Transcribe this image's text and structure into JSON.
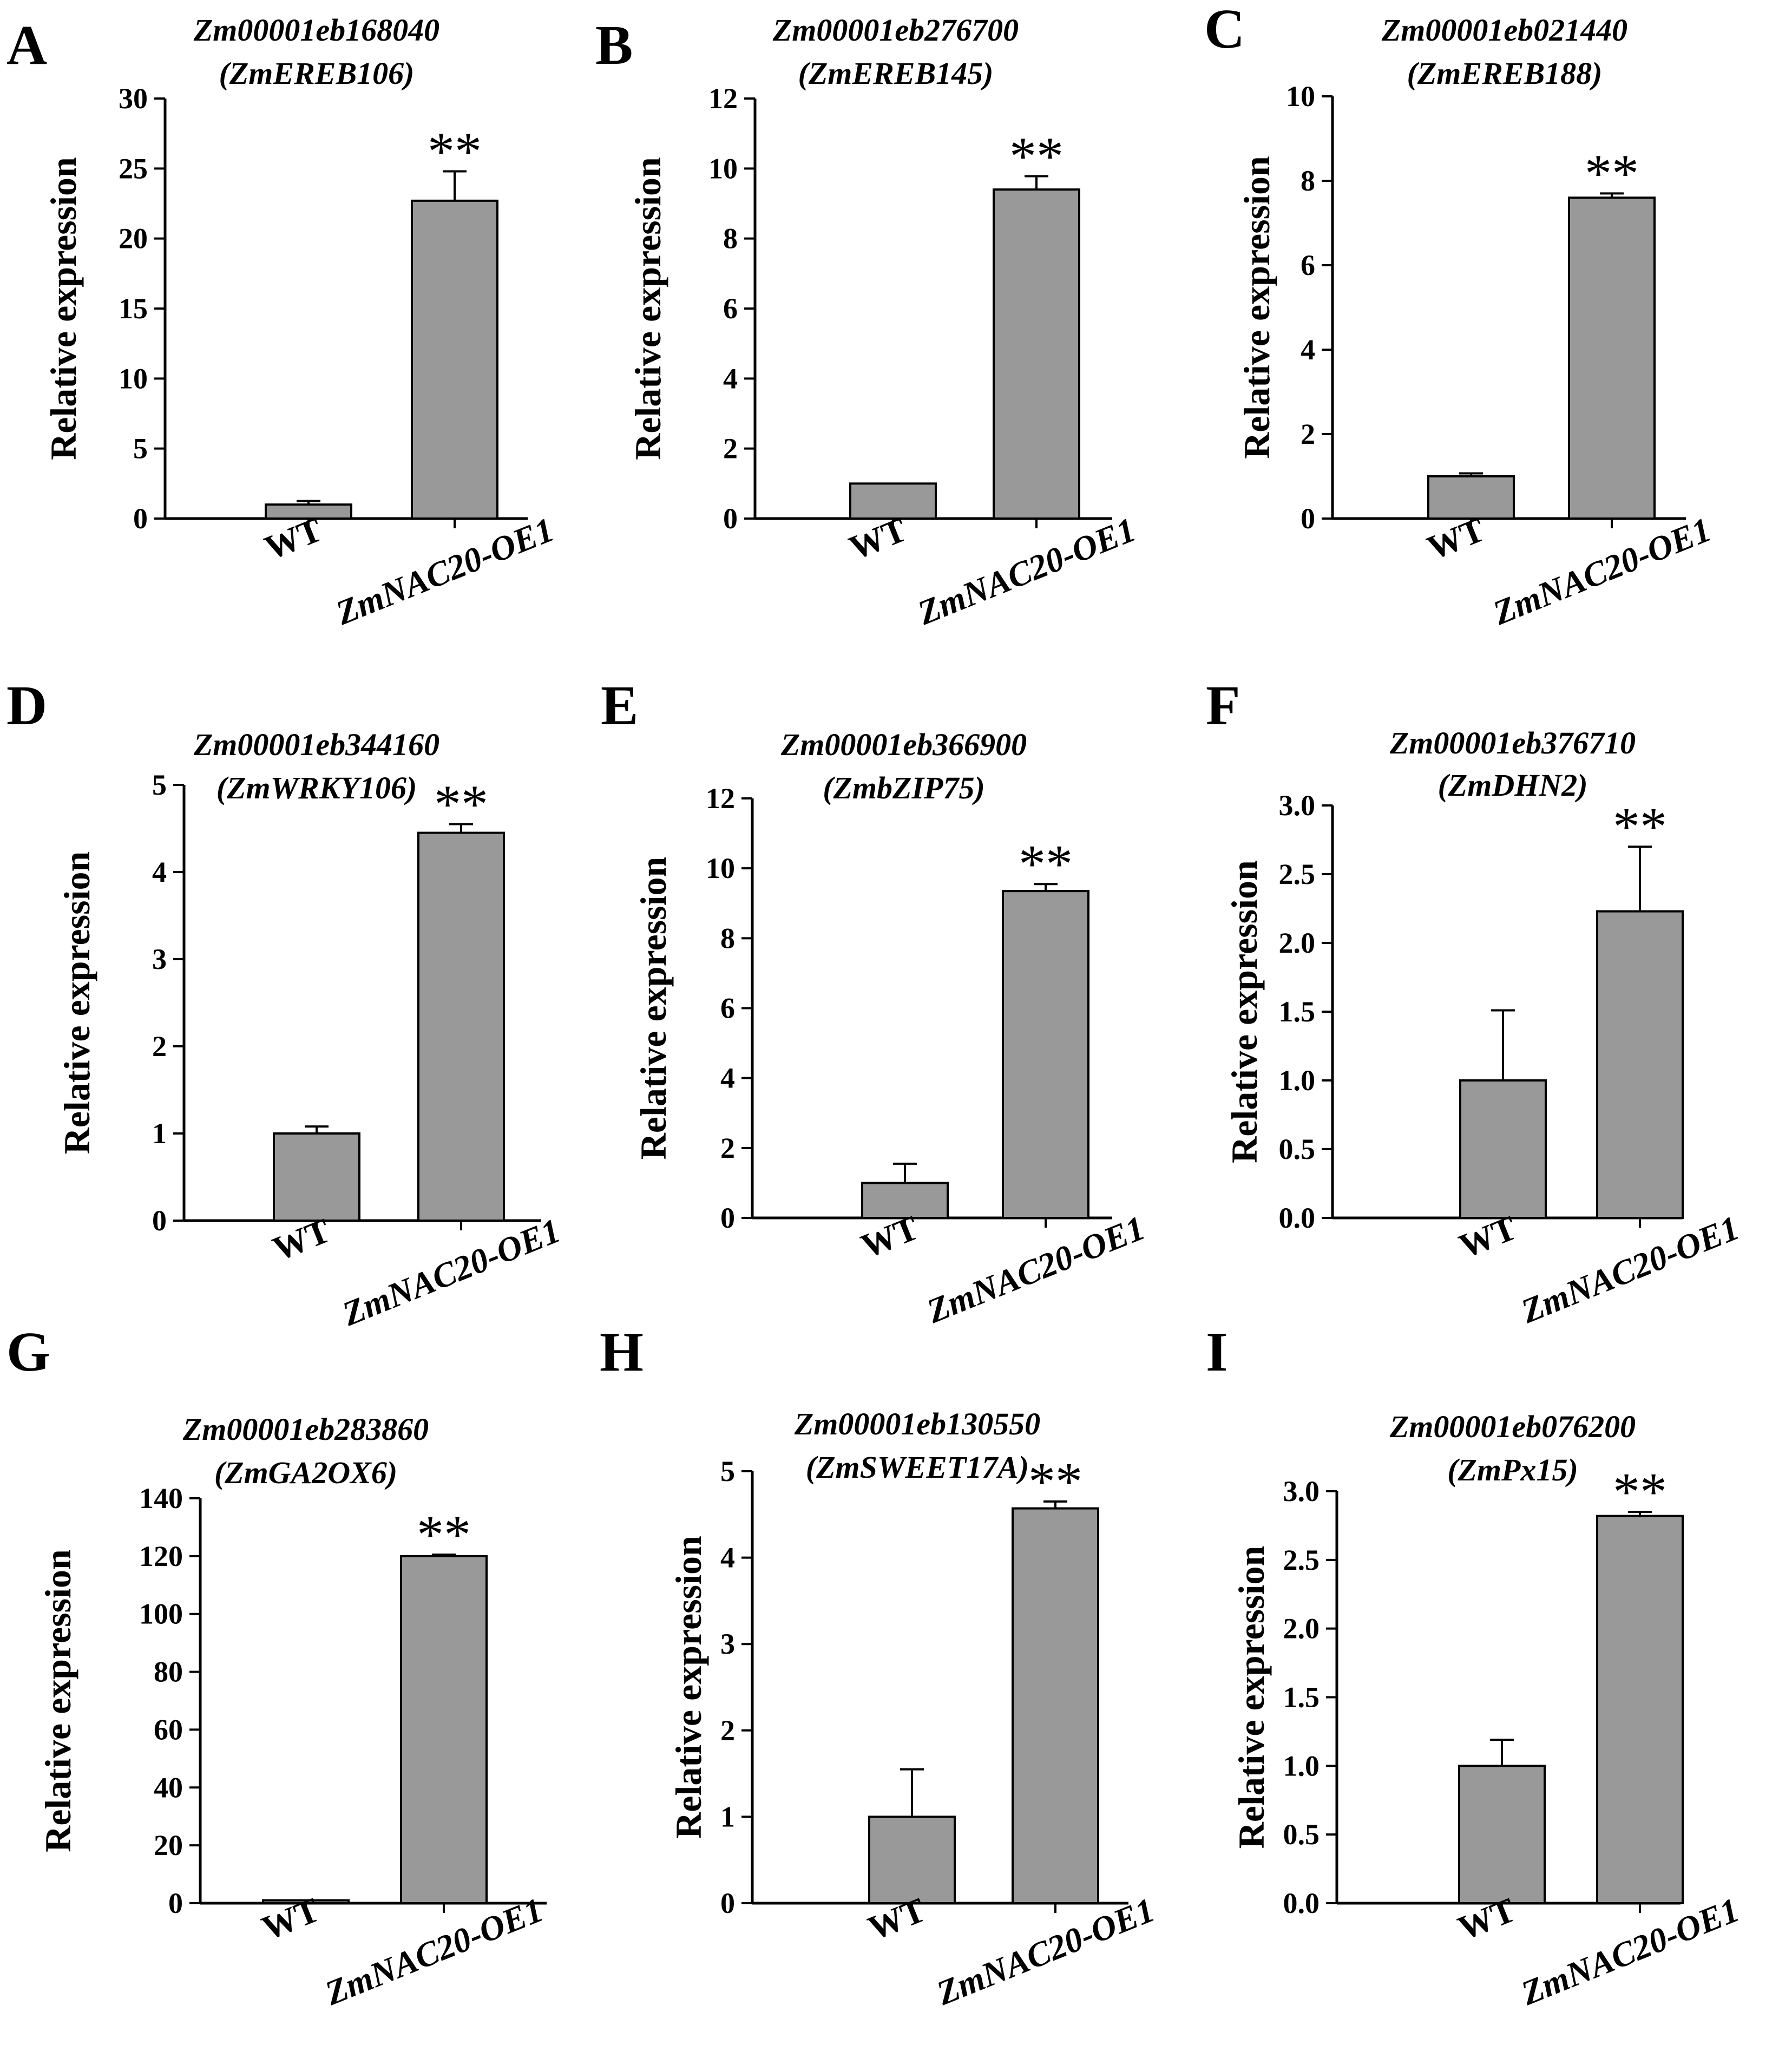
{
  "figure": {
    "colors": {
      "bar": "#999999",
      "bar_stroke": "#000000",
      "axis": "#000000"
    },
    "categories": [
      "WT",
      "ZmNAC20-OE1"
    ],
    "y_axis_label": "Relative expression"
  },
  "chart_data": [
    {
      "panel": "A",
      "type": "bar",
      "title": "Zm00001eb168040",
      "subtitle": "(ZmEREB106)",
      "categories": [
        "WT",
        "ZmNAC20-OE1"
      ],
      "values": [
        1.0,
        22.7
      ],
      "errors": [
        0.25,
        2.1
      ],
      "significance": [
        "",
        "**"
      ],
      "ylabel": "Relative expression",
      "ylim": [
        0,
        30
      ],
      "yticks": [
        0,
        5,
        10,
        15,
        20,
        25,
        30
      ],
      "ytick_labels": [
        "0",
        "5",
        "10",
        "15",
        "20",
        "25",
        "30"
      ]
    },
    {
      "panel": "B",
      "type": "bar",
      "title": "Zm00001eb276700",
      "subtitle": "(ZmEREB145)",
      "categories": [
        "WT",
        "ZmNAC20-OE1"
      ],
      "values": [
        1.0,
        9.4
      ],
      "errors": [
        0.0,
        0.38
      ],
      "significance": [
        "",
        "**"
      ],
      "ylabel": "Relative expression",
      "ylim": [
        0,
        12
      ],
      "yticks": [
        0,
        2,
        4,
        6,
        8,
        10,
        12
      ],
      "ytick_labels": [
        "0",
        "2",
        "4",
        "6",
        "8",
        "10",
        "12"
      ]
    },
    {
      "panel": "C",
      "type": "bar",
      "title": "Zm00001eb021440",
      "subtitle": "(ZmEREB188)",
      "categories": [
        "WT",
        "ZmNAC20-OE1"
      ],
      "values": [
        1.0,
        7.6
      ],
      "errors": [
        0.07,
        0.1
      ],
      "significance": [
        "",
        "**"
      ],
      "ylabel": "Relative expression",
      "ylim": [
        0,
        10
      ],
      "yticks": [
        0,
        2,
        4,
        6,
        8,
        10
      ],
      "ytick_labels": [
        "0",
        "2",
        "4",
        "6",
        "8",
        "10"
      ]
    },
    {
      "panel": "D",
      "type": "bar",
      "title": "Zm00001eb344160",
      "subtitle": "(ZmWRKY106)",
      "categories": [
        "WT",
        "ZmNAC20-OE1"
      ],
      "values": [
        1.0,
        4.45
      ],
      "errors": [
        0.08,
        0.1
      ],
      "significance": [
        "",
        "**"
      ],
      "ylabel": "Relative expression",
      "ylim": [
        0,
        5
      ],
      "yticks": [
        0,
        1,
        2,
        3,
        4,
        5
      ],
      "ytick_labels": [
        "0",
        "1",
        "2",
        "3",
        "4",
        "5"
      ]
    },
    {
      "panel": "E",
      "type": "bar",
      "title": "Zm00001eb366900",
      "subtitle": "(ZmbZIP75)",
      "categories": [
        "WT",
        "ZmNAC20-OE1"
      ],
      "values": [
        1.0,
        9.35
      ],
      "errors": [
        0.55,
        0.2
      ],
      "significance": [
        "",
        "**"
      ],
      "ylabel": "Relative expression",
      "ylim": [
        0,
        12
      ],
      "yticks": [
        0,
        2,
        4,
        6,
        8,
        10,
        12
      ],
      "ytick_labels": [
        "0",
        "2",
        "4",
        "6",
        "8",
        "10",
        "12"
      ]
    },
    {
      "panel": "F",
      "type": "bar",
      "title": "Zm00001eb376710",
      "subtitle": "(ZmDHN2)",
      "categories": [
        "WT",
        "ZmNAC20-OE1"
      ],
      "values": [
        1.0,
        2.23
      ],
      "errors": [
        0.51,
        0.47
      ],
      "significance": [
        "",
        "**"
      ],
      "ylabel": "Relative expression",
      "ylim": [
        0,
        3
      ],
      "yticks": [
        0,
        0.5,
        1,
        1.5,
        2,
        2.5,
        3
      ],
      "ytick_labels": [
        "0.0",
        "0.5",
        "1.0",
        "1.5",
        "2.0",
        "2.5",
        "3.0"
      ]
    },
    {
      "panel": "G",
      "type": "bar",
      "title": "Zm00001eb283860",
      "subtitle": "(ZmGA2OX6)",
      "categories": [
        "WT",
        "ZmNAC20-OE1"
      ],
      "values": [
        1.0,
        120
      ],
      "errors": [
        0.0,
        0.5
      ],
      "significance": [
        "",
        "**"
      ],
      "ylabel": "Relative expression",
      "ylim": [
        0,
        140
      ],
      "yticks": [
        0,
        20,
        40,
        60,
        80,
        100,
        120,
        140
      ],
      "ytick_labels": [
        "0",
        "20",
        "40",
        "60",
        "80",
        "100",
        "120",
        "140"
      ]
    },
    {
      "panel": "H",
      "type": "bar",
      "title": "Zm00001eb130550",
      "subtitle": "(ZmSWEET17A)",
      "categories": [
        "WT",
        "ZmNAC20-OE1"
      ],
      "values": [
        1.0,
        4.57
      ],
      "errors": [
        0.55,
        0.08
      ],
      "significance": [
        "",
        "**"
      ],
      "ylabel": "Relative expression",
      "ylim": [
        0,
        5
      ],
      "yticks": [
        0,
        1,
        2,
        3,
        4,
        5
      ],
      "ytick_labels": [
        "0",
        "1",
        "2",
        "3",
        "4",
        "5"
      ]
    },
    {
      "panel": "I",
      "type": "bar",
      "title": "Zm00001eb076200",
      "subtitle": "(ZmPx15)",
      "categories": [
        "WT",
        "ZmNAC20-OE1"
      ],
      "values": [
        1.0,
        2.82
      ],
      "errors": [
        0.19,
        0.03
      ],
      "significance": [
        "",
        "**"
      ],
      "ylabel": "Relative expression",
      "ylim": [
        0,
        3
      ],
      "yticks": [
        0,
        0.5,
        1,
        1.5,
        2,
        2.5,
        3
      ],
      "ytick_labels": [
        "0.0",
        "0.5",
        "1.0",
        "1.5",
        "2.0",
        "2.5",
        "3.0"
      ]
    }
  ]
}
